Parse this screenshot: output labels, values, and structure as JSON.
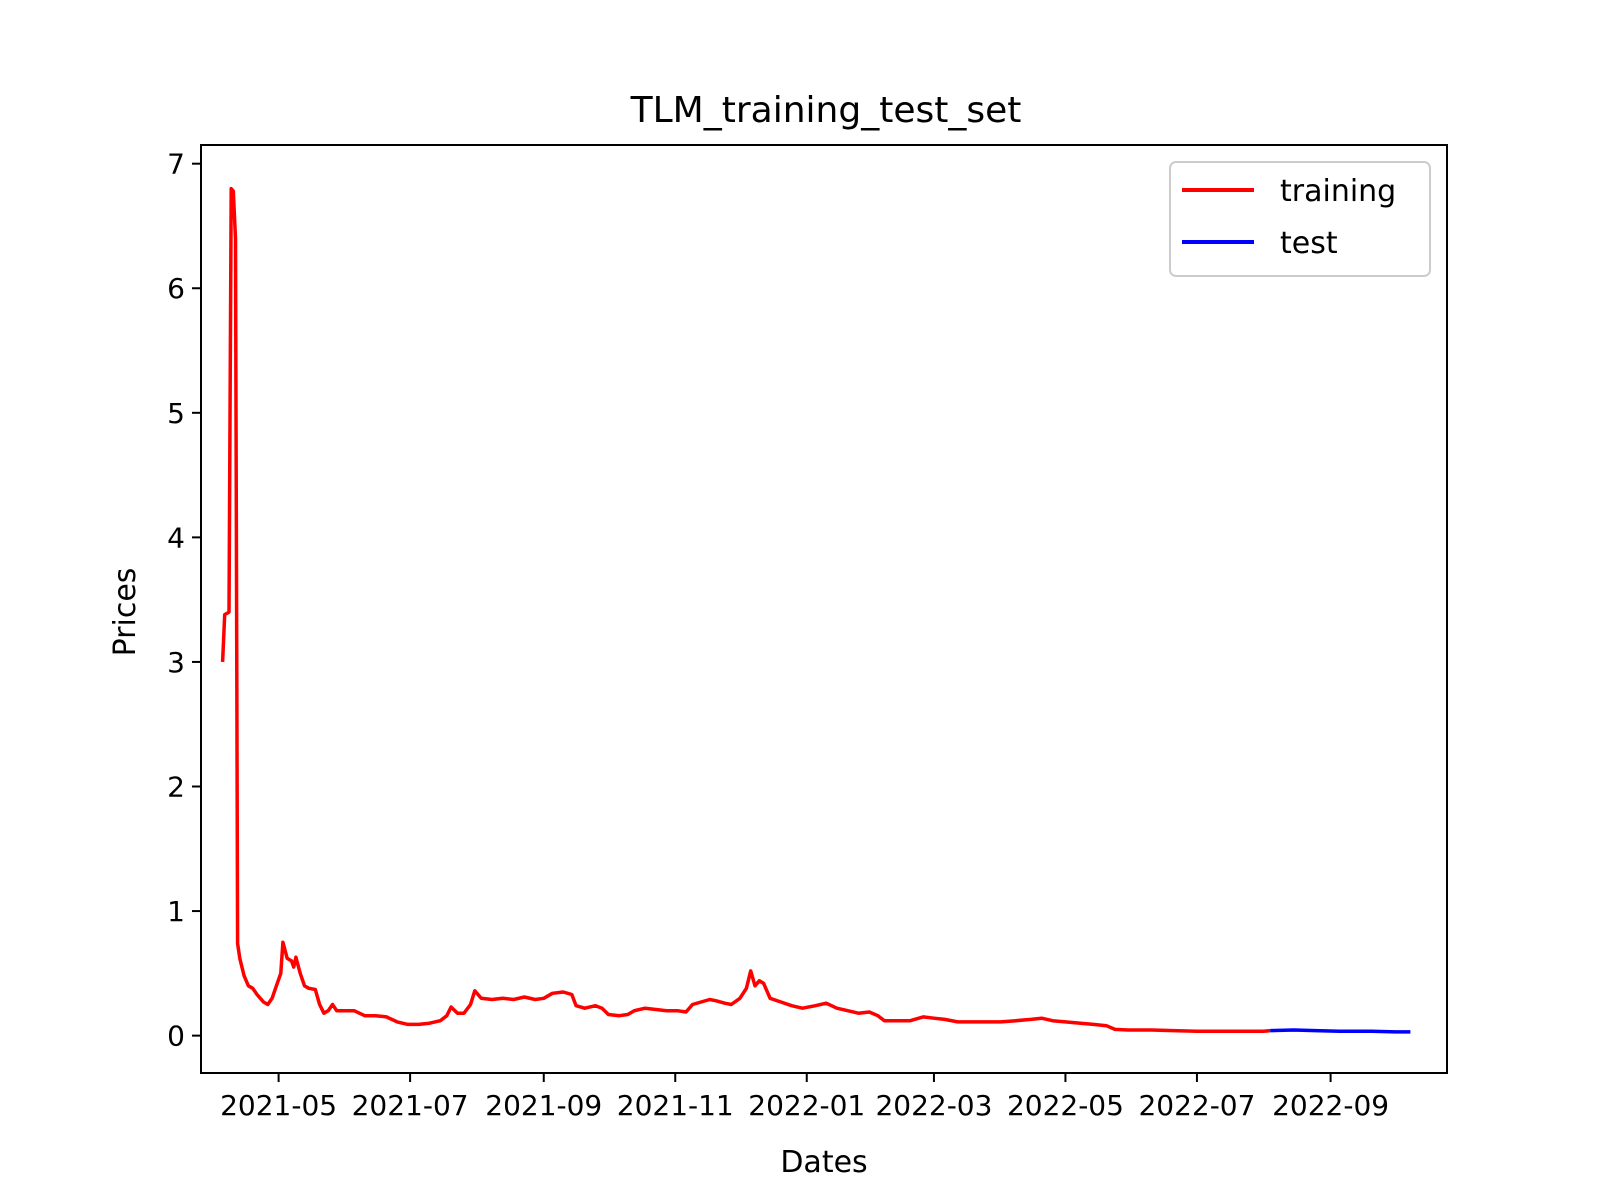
{
  "chart_data": {
    "type": "line",
    "title": "TLM_training_test_set",
    "xlabel": "Dates",
    "ylabel": "Prices",
    "xlim": [
      "2021-03-26",
      "2022-10-25"
    ],
    "ylim": [
      -0.3,
      7.15
    ],
    "x_ticks": [
      "2021-05",
      "2021-07",
      "2021-09",
      "2021-11",
      "2022-01",
      "2022-03",
      "2022-05",
      "2022-07",
      "2022-09"
    ],
    "y_ticks": [
      "0",
      "1",
      "2",
      "3",
      "4",
      "5",
      "6",
      "7"
    ],
    "legend": {
      "placement": "top-right"
    },
    "grid": false,
    "series": [
      {
        "name": "training",
        "color": "#ff0000",
        "points": [
          [
            "2021-04-05",
            3.0
          ],
          [
            "2021-04-06",
            3.38
          ],
          [
            "2021-04-08",
            3.4
          ],
          [
            "2021-04-09",
            6.8
          ],
          [
            "2021-04-10",
            6.78
          ],
          [
            "2021-04-11",
            6.4
          ],
          [
            "2021-04-12",
            0.74
          ],
          [
            "2021-04-13",
            0.62
          ],
          [
            "2021-04-15",
            0.48
          ],
          [
            "2021-04-17",
            0.4
          ],
          [
            "2021-04-19",
            0.38
          ],
          [
            "2021-04-21",
            0.33
          ],
          [
            "2021-04-24",
            0.27
          ],
          [
            "2021-04-26",
            0.25
          ],
          [
            "2021-04-28",
            0.3
          ],
          [
            "2021-04-30",
            0.4
          ],
          [
            "2021-05-02",
            0.5
          ],
          [
            "2021-05-03",
            0.75
          ],
          [
            "2021-05-05",
            0.62
          ],
          [
            "2021-05-07",
            0.6
          ],
          [
            "2021-05-08",
            0.55
          ],
          [
            "2021-05-09",
            0.63
          ],
          [
            "2021-05-11",
            0.5
          ],
          [
            "2021-05-13",
            0.4
          ],
          [
            "2021-05-15",
            0.38
          ],
          [
            "2021-05-18",
            0.37
          ],
          [
            "2021-05-20",
            0.25
          ],
          [
            "2021-05-22",
            0.18
          ],
          [
            "2021-05-24",
            0.2
          ],
          [
            "2021-05-26",
            0.25
          ],
          [
            "2021-05-28",
            0.2
          ],
          [
            "2021-06-01",
            0.2
          ],
          [
            "2021-06-05",
            0.2
          ],
          [
            "2021-06-10",
            0.16
          ],
          [
            "2021-06-15",
            0.16
          ],
          [
            "2021-06-20",
            0.15
          ],
          [
            "2021-06-25",
            0.11
          ],
          [
            "2021-06-30",
            0.09
          ],
          [
            "2021-07-05",
            0.09
          ],
          [
            "2021-07-10",
            0.1
          ],
          [
            "2021-07-15",
            0.12
          ],
          [
            "2021-07-18",
            0.16
          ],
          [
            "2021-07-20",
            0.23
          ],
          [
            "2021-07-23",
            0.18
          ],
          [
            "2021-07-26",
            0.18
          ],
          [
            "2021-07-29",
            0.25
          ],
          [
            "2021-07-31",
            0.36
          ],
          [
            "2021-08-03",
            0.3
          ],
          [
            "2021-08-08",
            0.29
          ],
          [
            "2021-08-13",
            0.3
          ],
          [
            "2021-08-18",
            0.29
          ],
          [
            "2021-08-23",
            0.31
          ],
          [
            "2021-08-28",
            0.29
          ],
          [
            "2021-09-01",
            0.3
          ],
          [
            "2021-09-05",
            0.34
          ],
          [
            "2021-09-10",
            0.35
          ],
          [
            "2021-09-14",
            0.33
          ],
          [
            "2021-09-16",
            0.24
          ],
          [
            "2021-09-20",
            0.22
          ],
          [
            "2021-09-25",
            0.24
          ],
          [
            "2021-09-28",
            0.22
          ],
          [
            "2021-10-01",
            0.17
          ],
          [
            "2021-10-06",
            0.16
          ],
          [
            "2021-10-10",
            0.17
          ],
          [
            "2021-10-13",
            0.2
          ],
          [
            "2021-10-18",
            0.22
          ],
          [
            "2021-10-23",
            0.21
          ],
          [
            "2021-10-28",
            0.2
          ],
          [
            "2021-11-02",
            0.2
          ],
          [
            "2021-11-06",
            0.19
          ],
          [
            "2021-11-09",
            0.25
          ],
          [
            "2021-11-13",
            0.27
          ],
          [
            "2021-11-17",
            0.29
          ],
          [
            "2021-11-20",
            0.28
          ],
          [
            "2021-11-24",
            0.26
          ],
          [
            "2021-11-27",
            0.25
          ],
          [
            "2021-12-01",
            0.3
          ],
          [
            "2021-12-04",
            0.38
          ],
          [
            "2021-12-06",
            0.52
          ],
          [
            "2021-12-08",
            0.4
          ],
          [
            "2021-12-10",
            0.44
          ],
          [
            "2021-12-12",
            0.42
          ],
          [
            "2021-12-15",
            0.3
          ],
          [
            "2021-12-20",
            0.27
          ],
          [
            "2021-12-25",
            0.24
          ],
          [
            "2021-12-30",
            0.22
          ],
          [
            "2022-01-05",
            0.24
          ],
          [
            "2022-01-10",
            0.26
          ],
          [
            "2022-01-15",
            0.22
          ],
          [
            "2022-01-20",
            0.2
          ],
          [
            "2022-01-25",
            0.18
          ],
          [
            "2022-01-30",
            0.19
          ],
          [
            "2022-02-03",
            0.16
          ],
          [
            "2022-02-06",
            0.12
          ],
          [
            "2022-02-12",
            0.12
          ],
          [
            "2022-02-18",
            0.12
          ],
          [
            "2022-02-24",
            0.15
          ],
          [
            "2022-03-01",
            0.14
          ],
          [
            "2022-03-06",
            0.13
          ],
          [
            "2022-03-12",
            0.11
          ],
          [
            "2022-03-18",
            0.11
          ],
          [
            "2022-03-25",
            0.11
          ],
          [
            "2022-04-01",
            0.11
          ],
          [
            "2022-04-08",
            0.12
          ],
          [
            "2022-04-15",
            0.13
          ],
          [
            "2022-04-20",
            0.14
          ],
          [
            "2022-04-25",
            0.12
          ],
          [
            "2022-05-01",
            0.11
          ],
          [
            "2022-05-08",
            0.1
          ],
          [
            "2022-05-14",
            0.09
          ],
          [
            "2022-05-20",
            0.08
          ],
          [
            "2022-05-24",
            0.05
          ],
          [
            "2022-05-30",
            0.045
          ],
          [
            "2022-06-10",
            0.045
          ],
          [
            "2022-06-20",
            0.04
          ],
          [
            "2022-07-01",
            0.035
          ],
          [
            "2022-07-15",
            0.035
          ],
          [
            "2022-08-01",
            0.035
          ],
          [
            "2022-08-04",
            0.04
          ]
        ]
      },
      {
        "name": "test",
        "color": "#0000ff",
        "points": [
          [
            "2022-08-04",
            0.04
          ],
          [
            "2022-08-15",
            0.045
          ],
          [
            "2022-08-25",
            0.04
          ],
          [
            "2022-09-05",
            0.035
          ],
          [
            "2022-09-20",
            0.035
          ],
          [
            "2022-10-01",
            0.03
          ],
          [
            "2022-10-08",
            0.03
          ]
        ]
      }
    ]
  }
}
